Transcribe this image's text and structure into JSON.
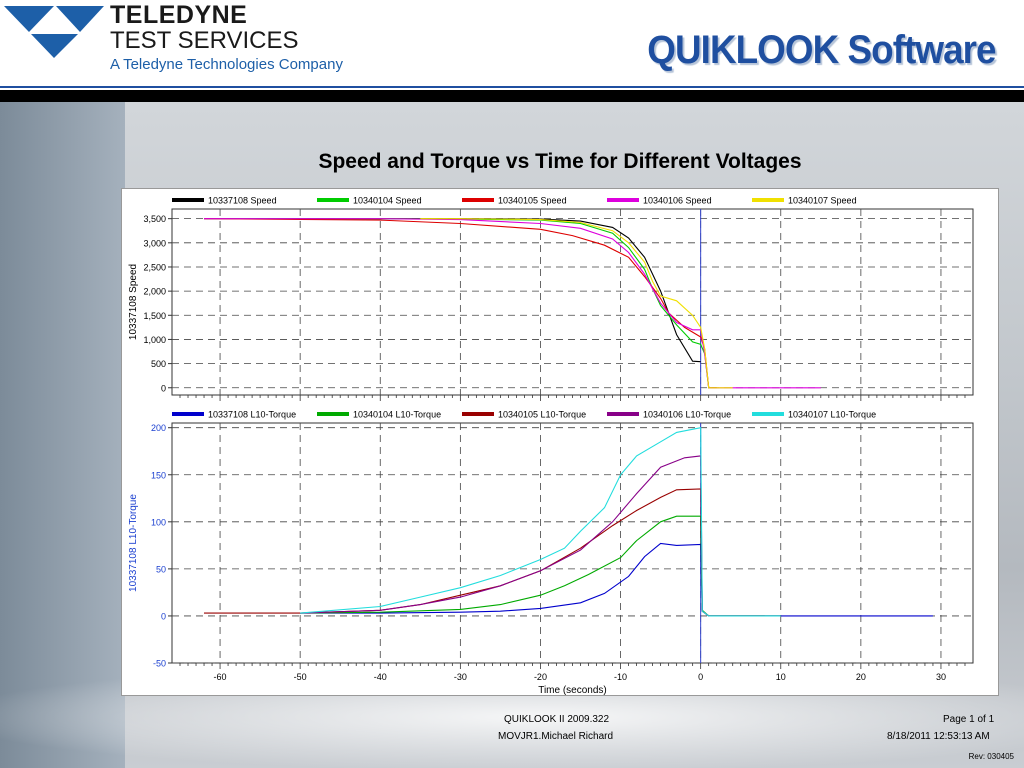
{
  "header": {
    "company_line1": "TELEDYNE",
    "company_line2": "TEST SERVICES",
    "company_line3": "A Teledyne Technologies Company",
    "app_title": "QUIKLOOK Software",
    "logo_icon": "teledyne-triangles-icon"
  },
  "chart_data": [
    {
      "type": "line",
      "title": "Speed and Torque vs Time for Different Voltages",
      "ylabel": "10337108   Speed",
      "ylim": [
        -150,
        3700
      ],
      "yticks": [
        0,
        500,
        1000,
        1500,
        2000,
        2500,
        3000,
        3500
      ],
      "ytick_labels": [
        "0",
        "500",
        "1,000",
        "1,500",
        "2,000",
        "2,500",
        "3,000",
        "3,500"
      ],
      "xlim": [
        -66,
        34
      ],
      "grid": true,
      "legend_placement": "top",
      "series": [
        {
          "name": "10337108   Speed",
          "color": "#000000",
          "x": [
            -62,
            -40,
            -30,
            -20,
            -15,
            -11,
            -9,
            -7,
            -5,
            -3,
            -1,
            0
          ],
          "y": [
            3500,
            3500,
            3500,
            3490,
            3450,
            3320,
            3100,
            2700,
            2000,
            1100,
            550,
            540
          ]
        },
        {
          "name": "10340104   Speed",
          "color": "#00cc00",
          "x": [
            -62,
            -40,
            -30,
            -20,
            -15,
            -11,
            -9,
            -7,
            -6,
            -5,
            -3,
            -1,
            0,
            0.5,
            1,
            2
          ],
          "y": [
            3500,
            3500,
            3490,
            3470,
            3400,
            3200,
            2900,
            2450,
            2050,
            1700,
            1300,
            950,
            900,
            700,
            0,
            0
          ]
        },
        {
          "name": "10340105   Speed",
          "color": "#dd0000",
          "x": [
            -62,
            -40,
            -30,
            -20,
            -16,
            -12,
            -9,
            -7,
            -5,
            -4,
            -2,
            0,
            0.5,
            1,
            2
          ],
          "y": [
            3500,
            3470,
            3400,
            3280,
            3150,
            2950,
            2700,
            2300,
            1850,
            1550,
            1250,
            1050,
            800,
            0,
            0
          ]
        },
        {
          "name": "10340106   Speed",
          "color": "#dd00dd",
          "x": [
            -62,
            -40,
            -30,
            -20,
            -15,
            -11,
            -9,
            -7,
            -5,
            -3,
            -1,
            0,
            0.5,
            1,
            15
          ],
          "y": [
            3500,
            3500,
            3480,
            3400,
            3300,
            3080,
            2800,
            2350,
            1750,
            1350,
            1200,
            1200,
            700,
            0,
            0
          ]
        },
        {
          "name": "10340107   Speed",
          "color": "#f0e000",
          "x": [
            -35,
            -30,
            -20,
            -15,
            -11,
            -9,
            -7,
            -6,
            -5,
            -3,
            -1,
            0,
            0.5,
            1,
            4
          ],
          "y": [
            3500,
            3500,
            3480,
            3420,
            3250,
            3000,
            2600,
            2200,
            1900,
            1800,
            1500,
            1250,
            800,
            0,
            0
          ]
        }
      ]
    },
    {
      "type": "line",
      "ylabel": "10337108   L10-Torque",
      "xlabel": "Time   (seconds)",
      "ylim": [
        -50,
        205
      ],
      "yticks": [
        -50,
        0,
        50,
        100,
        150,
        200
      ],
      "ytick_labels": [
        "-50",
        "0",
        "50",
        "100",
        "150",
        "200"
      ],
      "xlim": [
        -66,
        34
      ],
      "xticks": [
        -60,
        -50,
        -40,
        -30,
        -20,
        -10,
        0,
        10,
        20,
        30
      ],
      "xtick_labels": [
        "-60",
        "-50",
        "-40",
        "-30",
        "-20",
        "-10",
        "0",
        "10",
        "20",
        "30"
      ],
      "grid": true,
      "legend_placement": "top",
      "series": [
        {
          "name": "10337108   L10-Torque",
          "color": "#0000cc",
          "x": [
            -50,
            -40,
            -30,
            -25,
            -20,
            -15,
            -12,
            -9,
            -7,
            -5,
            -3,
            0,
            0.2,
            1,
            29
          ],
          "y": [
            3,
            3,
            4,
            5,
            8,
            14,
            24,
            42,
            63,
            77,
            75,
            76,
            5,
            0,
            0
          ]
        },
        {
          "name": "10340104   L10-Torque",
          "color": "#00aa00",
          "x": [
            -50,
            -40,
            -30,
            -25,
            -20,
            -17,
            -14,
            -10,
            -8,
            -5,
            -3,
            0,
            0.2,
            1,
            10
          ],
          "y": [
            3,
            4,
            7,
            12,
            22,
            32,
            44,
            62,
            80,
            100,
            106,
            106,
            6,
            0,
            0
          ]
        },
        {
          "name": "10340105   L10-Torque",
          "color": "#990000",
          "x": [
            -62,
            -50,
            -40,
            -35,
            -30,
            -25,
            -20,
            -15,
            -11,
            -8,
            -5,
            -3,
            0,
            0.2,
            1,
            8
          ],
          "y": [
            3,
            3,
            6,
            12,
            22,
            32,
            48,
            72,
            96,
            112,
            126,
            134,
            135,
            5,
            0,
            0
          ]
        },
        {
          "name": "10340106   L10-Torque",
          "color": "#880088",
          "x": [
            -50,
            -40,
            -35,
            -30,
            -25,
            -20,
            -15,
            -11,
            -8,
            -5,
            -2,
            0,
            0.2,
            1,
            10
          ],
          "y": [
            3,
            6,
            12,
            20,
            32,
            48,
            70,
            100,
            130,
            158,
            168,
            170,
            5,
            0,
            0
          ]
        },
        {
          "name": "10340107   L10-Torque",
          "color": "#22dddd",
          "x": [
            -50,
            -40,
            -35,
            -30,
            -25,
            -20,
            -17,
            -15,
            -12,
            -10,
            -8,
            -5,
            -3,
            0,
            0.2,
            1,
            10
          ],
          "y": [
            3,
            10,
            20,
            30,
            43,
            60,
            72,
            90,
            115,
            150,
            170,
            185,
            195,
            200,
            5,
            0,
            0
          ]
        }
      ]
    }
  ],
  "footer": {
    "software_version": "QUIKLOOK II 2009.322",
    "user": "MOVJR1.Michael Richard",
    "page": "Page 1 of 1",
    "datetime": "8/18/2011 12:53:13 AM",
    "rev": "Rev: 030405"
  }
}
